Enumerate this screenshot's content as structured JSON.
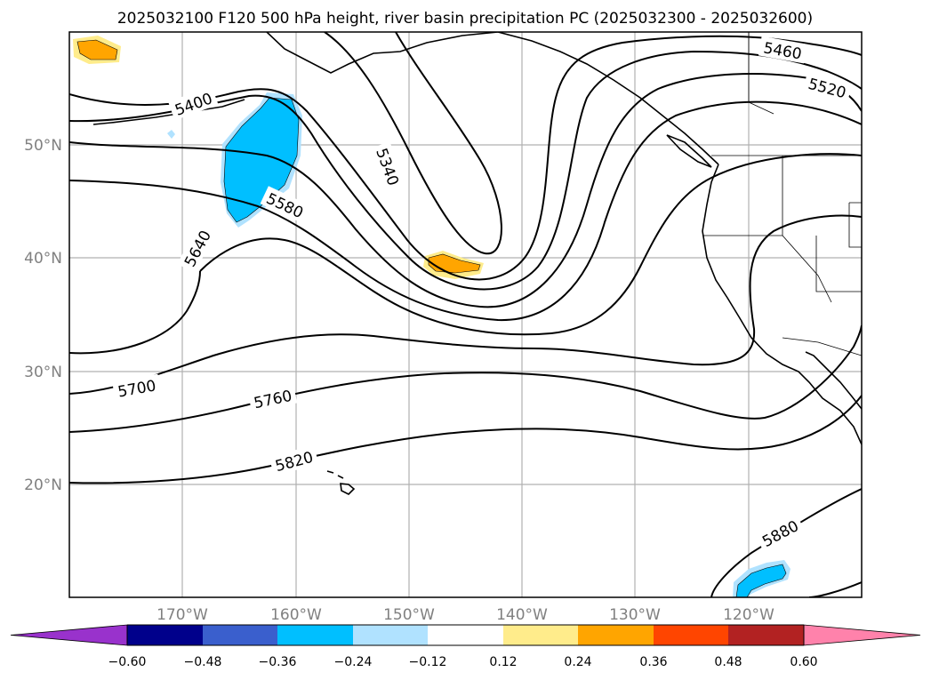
{
  "title": "2025032100 F120 500 hPa height, river basin precipitation PC (2025032300 - 2025032600)",
  "map": {
    "lon_ticks": [
      "170°W",
      "160°W",
      "150°W",
      "140°W",
      "130°W",
      "120°W"
    ],
    "lat_ticks": [
      "50°N",
      "40°N",
      "30°N",
      "20°N"
    ],
    "contour_labels": [
      "5400",
      "5340",
      "5460",
      "5520",
      "5580",
      "5640",
      "5700",
      "5760",
      "5820",
      "5880"
    ],
    "gridlines": true
  },
  "colorbar": {
    "ticks": [
      "−0.60",
      "−0.48",
      "−0.36",
      "−0.24",
      "−0.12",
      "0.12",
      "0.24",
      "0.36",
      "0.48",
      "0.60"
    ],
    "colors": {
      "under": "#9932cc",
      "b1": "#00008b",
      "b2": "#3a5fcd",
      "b3": "#00bfff",
      "b4": "#b0e2ff",
      "b5": "#ffffff",
      "b6": "#ffec8b",
      "b7": "#ffa500",
      "b8": "#ff4500",
      "b9": "#b22222",
      "over": "#ff82ab"
    }
  }
}
